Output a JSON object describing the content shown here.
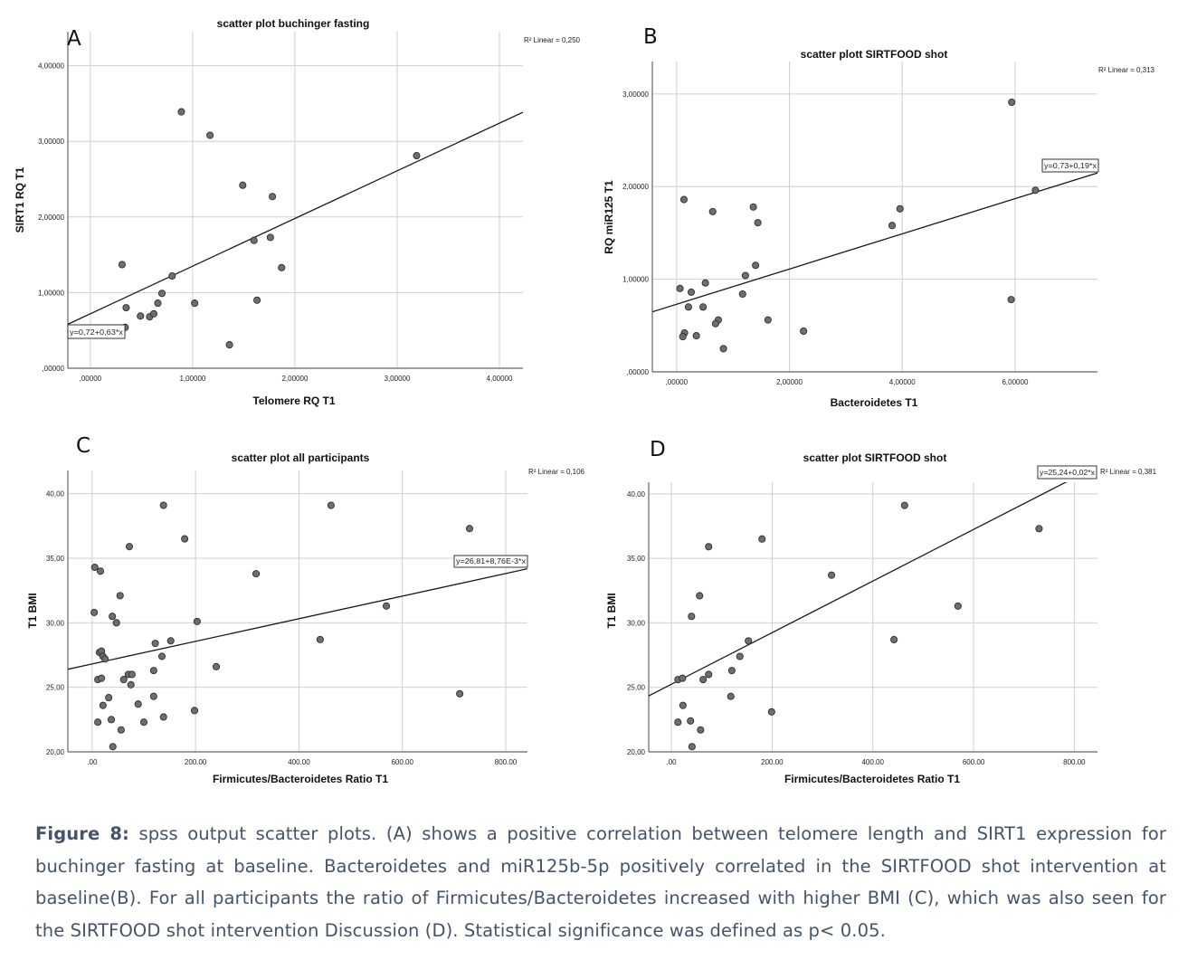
{
  "chart_data": [
    {
      "type": "scatter",
      "panel_letter": "A",
      "title": "scatter plot buchinger fasting",
      "xlabel": "Telomere RQ T1",
      "ylabel": "SIRT1 RQ T1",
      "r2_label": "R² Linear = 0,250",
      "equation_label": "y=0,72+0,63*x",
      "fit": {
        "intercept": 0.72,
        "slope": 0.63
      },
      "xlim": [
        -0.22,
        4.23
      ],
      "ylim": [
        0,
        4.45
      ],
      "grid": true,
      "x_ticks": [
        0,
        1,
        2,
        3,
        4
      ],
      "x_tick_labels": [
        ",00000",
        "1,00000",
        "2,00000",
        "3,00000",
        "4,00000"
      ],
      "y_ticks": [
        0,
        1,
        2,
        3,
        4
      ],
      "y_tick_labels": [
        ",00000",
        "1,00000",
        "2,00000",
        "3,00000",
        "4,00000"
      ],
      "points": [
        [
          0.89,
          3.39
        ],
        [
          1.17,
          3.08
        ],
        [
          3.19,
          2.81
        ],
        [
          1.49,
          2.42
        ],
        [
          1.78,
          2.27
        ],
        [
          1.6,
          1.69
        ],
        [
          1.76,
          1.73
        ],
        [
          0.31,
          1.37
        ],
        [
          1.87,
          1.33
        ],
        [
          0.8,
          1.22
        ],
        [
          0.7,
          0.99
        ],
        [
          0.66,
          0.86
        ],
        [
          1.02,
          0.86
        ],
        [
          1.63,
          0.9
        ],
        [
          0.35,
          0.8
        ],
        [
          0.49,
          0.69
        ],
        [
          0.58,
          0.68
        ],
        [
          0.62,
          0.72
        ],
        [
          0.34,
          0.54
        ],
        [
          1.36,
          0.31
        ]
      ]
    },
    {
      "type": "scatter",
      "panel_letter": "B",
      "title": "scatter plott SIRTFOOD shot",
      "xlabel": "Bacteroidetes T1",
      "ylabel": "RQ miR125 T1",
      "r2_label": "R² Linear = 0,313",
      "equation_label": "y=0,73+0,19*x",
      "fit": {
        "intercept": 0.73,
        "slope": 0.19
      },
      "xlim": [
        -0.43,
        7.46
      ],
      "ylim": [
        0,
        3.35
      ],
      "grid": true,
      "x_ticks": [
        0,
        2,
        4,
        6
      ],
      "x_tick_labels": [
        ",00000",
        "2,00000",
        "4,00000",
        "6,00000"
      ],
      "y_ticks": [
        0,
        1,
        2,
        3
      ],
      "y_tick_labels": [
        ",00000",
        "1,00000",
        "2,00000",
        "3,00000"
      ],
      "points": [
        [
          5.94,
          2.91
        ],
        [
          6.36,
          1.96
        ],
        [
          0.13,
          1.86
        ],
        [
          0.64,
          1.73
        ],
        [
          1.36,
          1.78
        ],
        [
          1.44,
          1.61
        ],
        [
          3.96,
          1.76
        ],
        [
          3.82,
          1.58
        ],
        [
          1.4,
          1.15
        ],
        [
          1.22,
          1.04
        ],
        [
          0.06,
          0.9
        ],
        [
          0.26,
          0.86
        ],
        [
          0.51,
          0.96
        ],
        [
          1.17,
          0.84
        ],
        [
          5.93,
          0.78
        ],
        [
          0.21,
          0.7
        ],
        [
          0.47,
          0.7
        ],
        [
          0.14,
          0.42
        ],
        [
          0.11,
          0.38
        ],
        [
          0.35,
          0.39
        ],
        [
          0.74,
          0.56
        ],
        [
          0.69,
          0.52
        ],
        [
          1.62,
          0.56
        ],
        [
          2.25,
          0.44
        ],
        [
          0.83,
          0.25
        ]
      ]
    },
    {
      "type": "scatter",
      "panel_letter": "C",
      "title": "scatter plot all participants",
      "xlabel": "Firmicutes/Bacteroidetes Ratio T1",
      "ylabel": "T1 BMI",
      "r2_label": "R² Linear = 0,106",
      "equation_label": "y=26,81+8,76E-3*x",
      "fit": {
        "intercept": 26.81,
        "slope": 0.00876
      },
      "xlim": [
        -47,
        842
      ],
      "ylim": [
        20,
        41.8
      ],
      "grid": true,
      "x_ticks": [
        0,
        200,
        400,
        600,
        800
      ],
      "x_tick_labels": [
        ".00",
        "200.00",
        "400.00",
        "600.00",
        "800.00"
      ],
      "y_ticks": [
        20,
        25,
        30,
        35,
        40
      ],
      "y_tick_labels": [
        "20,00",
        "25,00",
        "30,00",
        "35,00",
        "40,00"
      ],
      "points": [
        [
          138,
          39.1
        ],
        [
          462,
          39.1
        ],
        [
          730,
          37.3
        ],
        [
          179,
          36.5
        ],
        [
          72,
          35.9
        ],
        [
          317,
          33.8
        ],
        [
          5,
          34.3
        ],
        [
          16,
          34.0
        ],
        [
          54,
          32.1
        ],
        [
          569,
          31.3
        ],
        [
          4,
          30.8
        ],
        [
          39,
          30.5
        ],
        [
          47,
          30.0
        ],
        [
          203,
          30.1
        ],
        [
          441,
          28.7
        ],
        [
          152,
          28.6
        ],
        [
          122,
          28.4
        ],
        [
          14,
          27.7
        ],
        [
          18,
          27.8
        ],
        [
          21,
          27.4
        ],
        [
          25,
          27.2
        ],
        [
          135,
          27.4
        ],
        [
          240,
          26.6
        ],
        [
          119,
          26.3
        ],
        [
          70,
          26.0
        ],
        [
          77,
          26.0
        ],
        [
          11,
          25.6
        ],
        [
          18,
          25.7
        ],
        [
          61,
          25.6
        ],
        [
          75,
          25.2
        ],
        [
          32,
          24.2
        ],
        [
          119,
          24.3
        ],
        [
          711,
          24.5
        ],
        [
          21,
          23.6
        ],
        [
          89,
          23.7
        ],
        [
          198,
          23.2
        ],
        [
          11,
          22.3
        ],
        [
          37,
          22.5
        ],
        [
          100,
          22.3
        ],
        [
          138,
          22.7
        ],
        [
          56,
          21.7
        ],
        [
          40,
          20.4
        ]
      ]
    },
    {
      "type": "scatter",
      "panel_letter": "D",
      "title": "scatter plot SIRTFOOD shot",
      "xlabel": "Firmicutes/Bacteroidetes Ratio T1",
      "ylabel": "T1 BMI",
      "r2_label": "R² Linear = 0,381",
      "equation_label": "y=25,24+0,02*x",
      "fit": {
        "intercept": 25.24,
        "slope": 0.02
      },
      "xlim": [
        -45,
        846
      ],
      "ylim": [
        20,
        40.9
      ],
      "grid": true,
      "x_ticks": [
        0,
        200,
        400,
        600,
        800
      ],
      "x_tick_labels": [
        ".00",
        "200.00",
        "400.00",
        "600.00",
        "800.00"
      ],
      "y_ticks": [
        20,
        25,
        30,
        35,
        40
      ],
      "y_tick_labels": [
        "20,00",
        "25,00",
        "30,00",
        "35,00",
        "40,00"
      ],
      "points": [
        [
          463,
          39.1
        ],
        [
          730,
          37.3
        ],
        [
          180,
          36.5
        ],
        [
          74,
          35.9
        ],
        [
          318,
          33.7
        ],
        [
          56,
          32.1
        ],
        [
          40,
          30.5
        ],
        [
          569,
          31.3
        ],
        [
          442,
          28.7
        ],
        [
          153,
          28.6
        ],
        [
          136,
          27.4
        ],
        [
          120,
          26.3
        ],
        [
          74,
          26.0
        ],
        [
          63,
          25.6
        ],
        [
          13,
          25.6
        ],
        [
          22,
          25.7
        ],
        [
          118,
          24.3
        ],
        [
          23,
          23.6
        ],
        [
          199,
          23.1
        ],
        [
          13,
          22.3
        ],
        [
          38,
          22.4
        ],
        [
          58,
          21.7
        ],
        [
          41,
          20.4
        ]
      ]
    }
  ],
  "caption": {
    "label": "Figure 8:",
    "text": " spss output scatter plots. (A) shows a positive correlation between telomere length and SIRT1 expression for buchinger fasting at baseline. Bacteroidetes and miR125b-5p positively correlated in the SIRTFOOD shot intervention at baseline(B). For all participants the ratio of Firmicutes/Bacteroidetes increased with higher BMI (C), which was also seen for the SIRTFOOD shot intervention Discussion (D). Statistical significance was defined as p< 0.05."
  },
  "colors": {
    "caption": "#44546a",
    "point_fill": "#6e6e6e",
    "grid": "#cfcfcf",
    "line": "#1a1a1a"
  }
}
